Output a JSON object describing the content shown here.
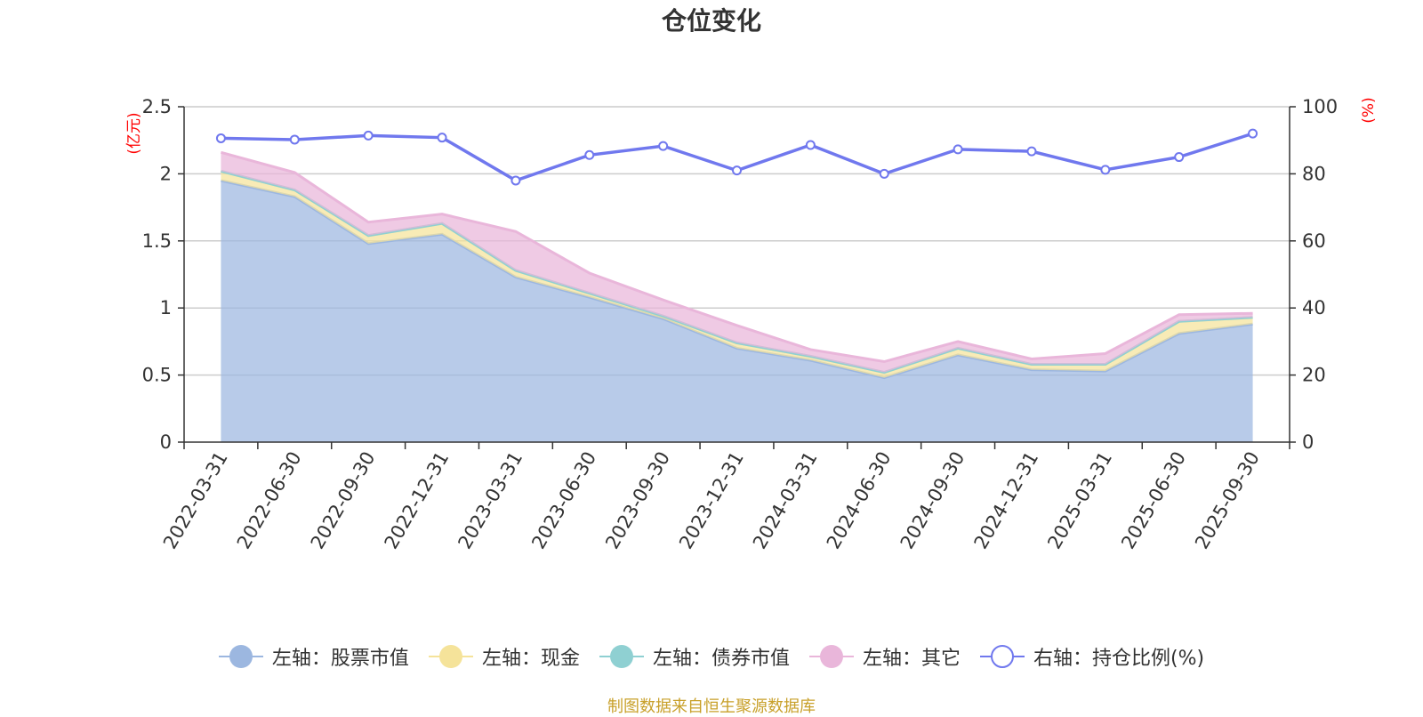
{
  "chart_data": {
    "type": "area",
    "title": "仓位变化",
    "categories": [
      "2022-03-31",
      "2022-06-30",
      "2022-09-30",
      "2022-12-31",
      "2023-03-31",
      "2023-06-30",
      "2023-09-30",
      "2023-12-31",
      "2024-03-31",
      "2024-06-30",
      "2024-09-30",
      "2024-12-31",
      "2025-03-31",
      "2025-06-30",
      "2025-09-30"
    ],
    "left_axis": {
      "label": "(亿元)",
      "ylim": [
        0,
        2.5
      ],
      "ticks": [
        "0",
        "0.5",
        "1",
        "1.5",
        "2",
        "2.5"
      ]
    },
    "right_axis": {
      "label": "(%)",
      "ylim": [
        0,
        100
      ],
      "ticks": [
        "0",
        "20",
        "40",
        "60",
        "80",
        "100"
      ]
    },
    "series": [
      {
        "name": "左轴：股票市值",
        "axis": "left",
        "stack": true,
        "color": "#9cb7e0",
        "values": [
          1.95,
          1.83,
          1.48,
          1.55,
          1.23,
          1.08,
          0.92,
          0.7,
          0.61,
          0.48,
          0.65,
          0.54,
          0.53,
          0.81,
          0.88
        ]
      },
      {
        "name": "左轴：现金",
        "axis": "left",
        "stack": true,
        "color": "#f5e39a",
        "values": [
          0.07,
          0.05,
          0.06,
          0.08,
          0.05,
          0.03,
          0.02,
          0.04,
          0.03,
          0.04,
          0.05,
          0.04,
          0.05,
          0.09,
          0.05
        ]
      },
      {
        "name": "左轴：债券市值",
        "axis": "left",
        "stack": true,
        "color": "#8fd0d2",
        "values": [
          0,
          0,
          0,
          0,
          0,
          0,
          0,
          0,
          0,
          0,
          0,
          0,
          0,
          0,
          0
        ]
      },
      {
        "name": "左轴：其它",
        "axis": "left",
        "stack": true,
        "color": "#e9b6da",
        "values": [
          0.14,
          0.13,
          0.1,
          0.07,
          0.29,
          0.15,
          0.12,
          0.13,
          0.05,
          0.08,
          0.05,
          0.04,
          0.08,
          0.05,
          0.03
        ]
      },
      {
        "name": "右轴：持仓比例(%)",
        "axis": "right",
        "stack": false,
        "color": "#7078ee",
        "values": [
          90.6,
          90.2,
          91.4,
          90.8,
          78.0,
          85.6,
          88.3,
          81.0,
          88.6,
          80.0,
          87.3,
          86.7,
          81.2,
          85.0,
          92.0
        ]
      }
    ]
  },
  "source_note": "制图数据来自恒生聚源数据库"
}
